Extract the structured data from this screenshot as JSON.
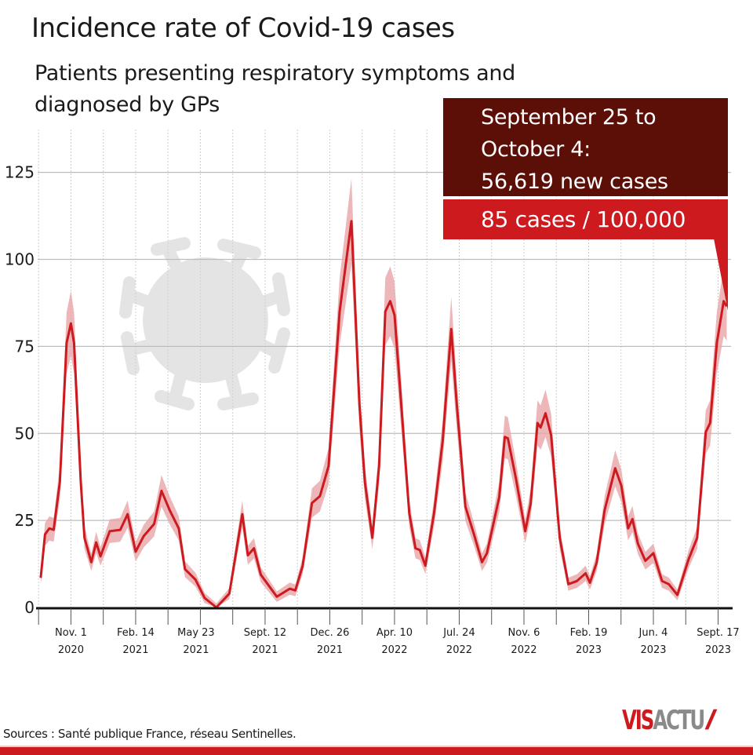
{
  "title": "Incidence rate of Covid-19 cases",
  "subtitle": "Patients presenting respiratory symptoms and diagnosed by GPs",
  "callout": {
    "period": "September 25 to October 4:",
    "new_cases": "56,619 new cases",
    "rate": "85 cases / 100,000",
    "dark_color": "#5c0f07",
    "red_color": "#cc1a1f"
  },
  "source": "Sources : Santé publique France, réseau Sentinelles.",
  "logo": {
    "text": "VISACTU"
  },
  "chart_data": {
    "type": "line",
    "title": "Incidence rate of Covid-19 cases",
    "xlabel": "",
    "ylabel": "",
    "xlim": [
      "2020-09-08",
      "2023-10-08"
    ],
    "ylim": [
      0,
      138
    ],
    "grid": true,
    "confidence_band": true,
    "background_icon": "coronavirus-icon",
    "line_color": "#cc1a1f",
    "band_color": "#e8a5a7",
    "yticks": [
      0,
      25,
      50,
      75,
      100,
      125
    ],
    "xticks": [
      {
        "date": "2020-11-01",
        "label": [
          "Nov. 1",
          "2020"
        ]
      },
      {
        "date": "2021-02-14",
        "label": [
          "Feb. 14",
          "2021"
        ]
      },
      {
        "date": "2021-05-23",
        "label": [
          "May 23",
          "2021"
        ]
      },
      {
        "date": "2021-09-12",
        "label": [
          "Sept. 12",
          "2021"
        ]
      },
      {
        "date": "2021-12-26",
        "label": [
          "Dec. 26",
          "2021"
        ]
      },
      {
        "date": "2022-04-10",
        "label": [
          "Apr. 10",
          "2022"
        ]
      },
      {
        "date": "2022-07-24",
        "label": [
          "Jul. 24",
          "2022"
        ]
      },
      {
        "date": "2022-11-06",
        "label": [
          "Nov. 6",
          "2022"
        ]
      },
      {
        "date": "2023-02-19",
        "label": [
          "Feb. 19",
          "2023"
        ]
      },
      {
        "date": "2023-06-04",
        "label": [
          "Jun. 4",
          "2023"
        ]
      },
      {
        "date": "2023-09-17",
        "label": [
          "Sept. 17",
          "2023"
        ]
      }
    ],
    "series": [
      {
        "points": [
          [
            "2020-09-13",
            8.5
          ],
          [
            "2020-09-20",
            21
          ],
          [
            "2020-09-27",
            22.7
          ],
          [
            "2020-10-04",
            22.3
          ],
          [
            "2020-10-14",
            36
          ],
          [
            "2020-10-25",
            76
          ],
          [
            "2020-11-01",
            81.6
          ],
          [
            "2020-11-06",
            76
          ],
          [
            "2020-11-17",
            36
          ],
          [
            "2020-11-23",
            20
          ],
          [
            "2020-12-04",
            13
          ],
          [
            "2020-12-12",
            18.7
          ],
          [
            "2020-12-19",
            14.7
          ],
          [
            "2021-01-03",
            21.9
          ],
          [
            "2021-01-20",
            22.3
          ],
          [
            "2021-02-01",
            26.8
          ],
          [
            "2021-02-14",
            16
          ],
          [
            "2021-02-27",
            20.5
          ],
          [
            "2021-03-16",
            24
          ],
          [
            "2021-03-28",
            33.5
          ],
          [
            "2021-04-10",
            28
          ],
          [
            "2021-04-25",
            22.7
          ],
          [
            "2021-05-05",
            11
          ],
          [
            "2021-05-22",
            8
          ],
          [
            "2021-06-06",
            2.7
          ],
          [
            "2021-06-25",
            0
          ],
          [
            "2021-07-16",
            4
          ],
          [
            "2021-08-06",
            26.8
          ],
          [
            "2021-08-15",
            15
          ],
          [
            "2021-08-25",
            17
          ],
          [
            "2021-09-05",
            9.4
          ],
          [
            "2021-10-01",
            3.1
          ],
          [
            "2021-10-22",
            5.4
          ],
          [
            "2021-10-31",
            4.9
          ],
          [
            "2021-11-12",
            12
          ],
          [
            "2021-11-27",
            30
          ],
          [
            "2021-12-10",
            32
          ],
          [
            "2021-12-24",
            40.6
          ],
          [
            "2022-01-11",
            85
          ],
          [
            "2022-01-30",
            111
          ],
          [
            "2022-02-12",
            58.4
          ],
          [
            "2022-02-21",
            36
          ],
          [
            "2022-03-05",
            20
          ],
          [
            "2022-03-16",
            40.6
          ],
          [
            "2022-03-26",
            85
          ],
          [
            "2022-04-03",
            88
          ],
          [
            "2022-04-10",
            84
          ],
          [
            "2022-04-19",
            63
          ],
          [
            "2022-05-04",
            27
          ],
          [
            "2022-05-14",
            17
          ],
          [
            "2022-05-21",
            16.5
          ],
          [
            "2022-05-30",
            12
          ],
          [
            "2022-06-13",
            27
          ],
          [
            "2022-06-27",
            47.7
          ],
          [
            "2022-07-11",
            80
          ],
          [
            "2022-07-20",
            58.4
          ],
          [
            "2022-08-03",
            29
          ],
          [
            "2022-08-17",
            21
          ],
          [
            "2022-08-30",
            13
          ],
          [
            "2022-09-07",
            15.6
          ],
          [
            "2022-09-27",
            31.7
          ],
          [
            "2022-10-06",
            49
          ],
          [
            "2022-10-11",
            48.6
          ],
          [
            "2022-10-24",
            37
          ],
          [
            "2022-11-08",
            21.9
          ],
          [
            "2022-11-17",
            29.9
          ],
          [
            "2022-11-28",
            53
          ],
          [
            "2022-12-03",
            51.7
          ],
          [
            "2022-12-11",
            55.8
          ],
          [
            "2022-12-20",
            49.5
          ],
          [
            "2023-01-03",
            20
          ],
          [
            "2023-01-17",
            6.7
          ],
          [
            "2023-01-31",
            7.6
          ],
          [
            "2023-02-14",
            9.8
          ],
          [
            "2023-02-21",
            7.1
          ],
          [
            "2023-03-04",
            12.9
          ],
          [
            "2023-03-17",
            28
          ],
          [
            "2023-04-03",
            40
          ],
          [
            "2023-04-13",
            35
          ],
          [
            "2023-04-24",
            22.7
          ],
          [
            "2023-05-01",
            25.4
          ],
          [
            "2023-05-10",
            18.3
          ],
          [
            "2023-05-22",
            13.4
          ],
          [
            "2023-06-04",
            15.6
          ],
          [
            "2023-06-18",
            7.6
          ],
          [
            "2023-06-29",
            6.7
          ],
          [
            "2023-07-13",
            3.6
          ],
          [
            "2023-07-31",
            13.8
          ],
          [
            "2023-08-14",
            20
          ],
          [
            "2023-08-28",
            50.4
          ],
          [
            "2023-09-04",
            53
          ],
          [
            "2023-09-15",
            76
          ],
          [
            "2023-09-26",
            88
          ],
          [
            "2023-10-01",
            86.5
          ]
        ]
      }
    ]
  }
}
